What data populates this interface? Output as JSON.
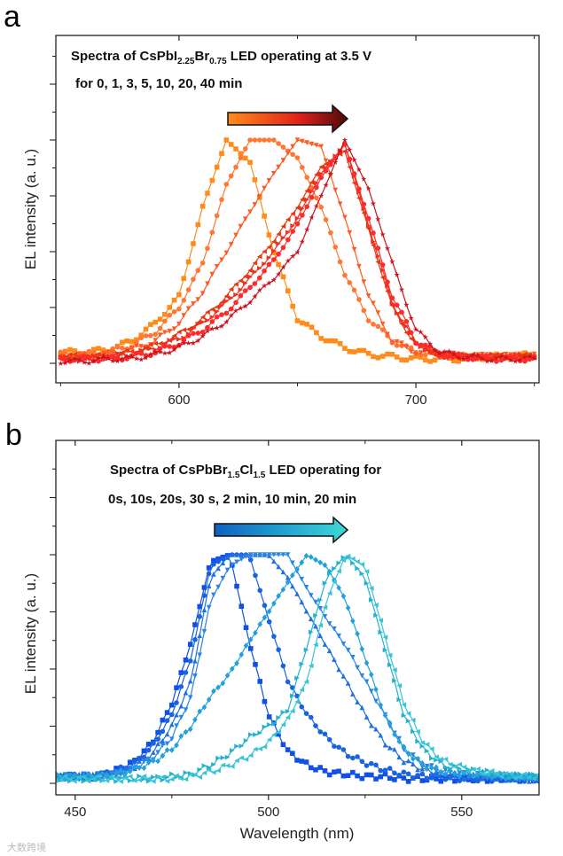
{
  "chart_data": [
    {
      "panel": "a",
      "type": "line",
      "annotation": {
        "line1": [
          "Spectra of CsPbI",
          "2.25",
          "Br",
          "0.75",
          " LED operating at 3.5 V"
        ],
        "line2": "for 0, 1, 3, 5, 10, 20, 40 min"
      },
      "xlabel": "",
      "ylabel": "EL intensity (a. u.)",
      "xlim": [
        548,
        752
      ],
      "ylim": [
        -0.1,
        1.35
      ],
      "xticks": [
        600,
        700
      ],
      "xtick_labels": [
        "600",
        "700"
      ],
      "arrow_colors": [
        "#FF8C1A",
        "#E0201A",
        "#4A0A0A"
      ],
      "x": [
        550,
        560,
        570,
        580,
        590,
        600,
        610,
        620,
        630,
        640,
        650,
        660,
        670,
        680,
        690,
        700,
        710,
        720,
        730,
        740,
        750
      ],
      "series": [
        {
          "name": "0 min",
          "marker": "square",
          "color": "#FF8C1A",
          "values": [
            0.05,
            0.05,
            0.06,
            0.1,
            0.18,
            0.3,
            0.7,
            1,
            0.9,
            0.5,
            0.2,
            0.12,
            0.07,
            0.04,
            0.03,
            0.02,
            0.02,
            0.02,
            0.03,
            0.03,
            0.04
          ]
        },
        {
          "name": "1 min",
          "marker": "circle",
          "color": "#FF7733",
          "values": [
            0.04,
            0.04,
            0.05,
            0.08,
            0.14,
            0.25,
            0.45,
            0.8,
            1,
            1,
            0.92,
            0.7,
            0.4,
            0.2,
            0.1,
            0.05,
            0.04,
            0.03,
            0.03,
            0.03,
            0.03
          ]
        },
        {
          "name": "3 min",
          "marker": "triangle-down",
          "color": "#FF5A22",
          "values": [
            0.03,
            0.03,
            0.04,
            0.06,
            0.1,
            0.18,
            0.32,
            0.5,
            0.68,
            0.85,
            1,
            0.97,
            0.65,
            0.3,
            0.1,
            0.05,
            0.04,
            0.03,
            0.03,
            0.03,
            0.03
          ]
        },
        {
          "name": "5 min",
          "marker": "triangle-left",
          "color": "#E8380F",
          "values": [
            0.03,
            0.03,
            0.03,
            0.05,
            0.08,
            0.13,
            0.2,
            0.3,
            0.42,
            0.55,
            0.7,
            0.88,
            0.95,
            0.6,
            0.25,
            0.08,
            0.04,
            0.03,
            0.03,
            0.03,
            0.03
          ]
        },
        {
          "name": "10 min",
          "marker": "triangle-right",
          "color": "#F0301E",
          "values": [
            0.02,
            0.02,
            0.03,
            0.04,
            0.07,
            0.11,
            0.18,
            0.27,
            0.38,
            0.5,
            0.65,
            0.85,
            0.98,
            0.62,
            0.27,
            0.09,
            0.04,
            0.03,
            0.03,
            0.03,
            0.03
          ]
        },
        {
          "name": "20 min",
          "marker": "circle",
          "color": "#FF2A2A",
          "values": [
            0.02,
            0.02,
            0.02,
            0.03,
            0.05,
            0.09,
            0.15,
            0.23,
            0.34,
            0.46,
            0.62,
            0.83,
            0.98,
            0.65,
            0.3,
            0.1,
            0.04,
            0.03,
            0.02,
            0.02,
            0.02
          ]
        },
        {
          "name": "40 min",
          "marker": "star",
          "color": "#C8141E",
          "values": [
            0.01,
            0.01,
            0.02,
            0.02,
            0.04,
            0.07,
            0.12,
            0.19,
            0.28,
            0.38,
            0.5,
            0.75,
            1,
            0.78,
            0.45,
            0.15,
            0.05,
            0.03,
            0.02,
            0.02,
            0.02
          ]
        }
      ]
    },
    {
      "panel": "b",
      "type": "line",
      "annotation": {
        "line1": [
          "Spectra of CsPbBr",
          "1.5",
          "Cl",
          "1.5",
          " LED operating for"
        ],
        "line2": "0s, 10s, 20s, 30 s, 2 min, 10 min, 20 min"
      },
      "xlabel": "Wavelength (nm)",
      "ylabel": "EL intensity (a. u.)",
      "xlim": [
        445,
        570
      ],
      "ylim": [
        -0.05,
        1.4
      ],
      "xticks": [
        450,
        500,
        550
      ],
      "xtick_labels": [
        "450",
        "500",
        "550"
      ],
      "arrow_colors": [
        "#1060C0",
        "#20A0D0",
        "#40D8D8"
      ],
      "x": [
        445,
        450,
        455,
        460,
        465,
        470,
        475,
        480,
        485,
        490,
        495,
        500,
        505,
        510,
        515,
        520,
        525,
        530,
        535,
        540,
        545,
        550,
        555,
        560,
        565,
        570
      ],
      "series": [
        {
          "name": "0s",
          "marker": "square",
          "color": "#1050E8",
          "values": [
            0.03,
            0.03,
            0.03,
            0.05,
            0.09,
            0.18,
            0.35,
            0.62,
            0.97,
            1,
            0.62,
            0.3,
            0.14,
            0.08,
            0.05,
            0.04,
            0.03,
            0.03,
            0.02,
            0.02,
            0.02,
            0.02,
            0.02,
            0.02,
            0.02,
            0.02
          ]
        },
        {
          "name": "10s",
          "marker": "circle",
          "color": "#1A62E2",
          "values": [
            0.03,
            0.03,
            0.03,
            0.05,
            0.08,
            0.16,
            0.3,
            0.55,
            0.95,
            1,
            1,
            0.72,
            0.45,
            0.3,
            0.2,
            0.13,
            0.09,
            0.06,
            0.04,
            0.03,
            0.03,
            0.02,
            0.02,
            0.02,
            0.02,
            0.02
          ]
        },
        {
          "name": "20s",
          "marker": "triangle-up",
          "color": "#2070E0",
          "values": [
            0.03,
            0.03,
            0.03,
            0.04,
            0.07,
            0.13,
            0.25,
            0.45,
            0.9,
            1,
            1,
            1,
            0.9,
            0.75,
            0.6,
            0.45,
            0.3,
            0.18,
            0.1,
            0.06,
            0.04,
            0.03,
            0.03,
            0.03,
            0.02,
            0.02
          ]
        },
        {
          "name": "30 s",
          "marker": "triangle-down",
          "color": "#2A84E4",
          "values": [
            0.03,
            0.03,
            0.03,
            0.04,
            0.06,
            0.11,
            0.2,
            0.38,
            0.8,
            0.95,
            1,
            1,
            1,
            0.85,
            0.72,
            0.6,
            0.45,
            0.3,
            0.15,
            0.08,
            0.05,
            0.04,
            0.03,
            0.03,
            0.02,
            0.02
          ]
        },
        {
          "name": "2 min",
          "marker": "diamond",
          "color": "#22A0DA",
          "values": [
            0.03,
            0.03,
            0.03,
            0.04,
            0.06,
            0.09,
            0.15,
            0.25,
            0.38,
            0.48,
            0.62,
            0.75,
            0.88,
            1,
            0.95,
            0.8,
            0.55,
            0.3,
            0.15,
            0.08,
            0.05,
            0.04,
            0.04,
            0.03,
            0.03,
            0.03
          ]
        },
        {
          "name": "10 min",
          "marker": "triangle-right",
          "color": "#22B2CE",
          "values": [
            0.02,
            0.02,
            0.02,
            0.02,
            0.02,
            0.02,
            0.03,
            0.04,
            0.08,
            0.13,
            0.2,
            0.25,
            0.32,
            0.6,
            0.9,
            1,
            0.9,
            0.6,
            0.3,
            0.15,
            0.08,
            0.06,
            0.05,
            0.04,
            0.03,
            0.03
          ]
        },
        {
          "name": "20 min",
          "marker": "triangle-left",
          "color": "#38C4D6",
          "values": [
            0.02,
            0.02,
            0.02,
            0.02,
            0.02,
            0.02,
            0.02,
            0.03,
            0.05,
            0.08,
            0.12,
            0.18,
            0.28,
            0.45,
            0.8,
            1,
            0.95,
            0.65,
            0.35,
            0.18,
            0.1,
            0.07,
            0.05,
            0.04,
            0.03,
            0.03
          ]
        }
      ]
    }
  ],
  "panel_labels": [
    "a",
    "b"
  ],
  "watermark": "大数跨境"
}
